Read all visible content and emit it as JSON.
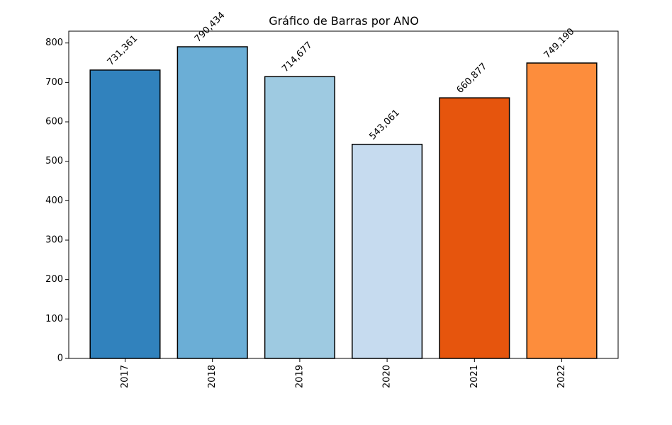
{
  "chart_data": {
    "type": "bar",
    "title": "Gráfico de Barras por ANO",
    "xlabel": "",
    "ylabel": "",
    "categories": [
      "2017",
      "2018",
      "2019",
      "2020",
      "2021",
      "2022"
    ],
    "values": [
      731.361,
      790.434,
      714.677,
      543.061,
      660.877,
      749.19
    ],
    "data_labels": [
      "731,361",
      "790,434",
      "714,677",
      "543,061",
      "660,877",
      "749,190"
    ],
    "colors": [
      "#3182bd",
      "#6baed6",
      "#9ecae1",
      "#c6dbef",
      "#e6550d",
      "#fd8d3c"
    ],
    "ylim": [
      0,
      830
    ],
    "yticks": [
      0,
      100,
      200,
      300,
      400,
      500,
      600,
      700,
      800
    ],
    "grid": false,
    "legend": "none"
  }
}
